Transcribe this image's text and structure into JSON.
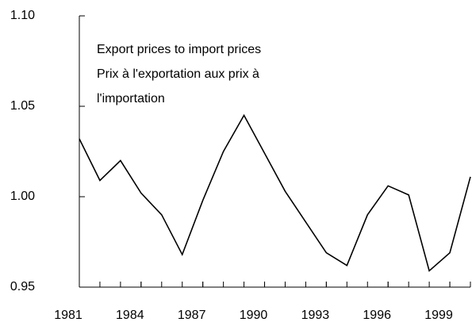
{
  "chart_data": {
    "type": "line",
    "annotations": [
      "Export prices to import prices",
      "Prix à l'exportation aux prix à",
      "l'importation"
    ],
    "x": [
      1981,
      1982,
      1983,
      1984,
      1985,
      1986,
      1987,
      1988,
      1989,
      1990,
      1991,
      1992,
      1993,
      1994,
      1995,
      1996,
      1997,
      1998,
      1999,
      2000
    ],
    "series": [
      {
        "color": "#000000",
        "values": [
          1.032,
          1.009,
          1.02,
          1.002,
          0.99,
          0.968,
          0.998,
          1.025,
          1.045,
          1.024,
          1.003,
          0.986,
          0.969,
          0.962,
          0.99,
          1.006,
          1.001,
          0.959,
          0.969,
          1.011
        ]
      }
    ],
    "xlim": [
      1981,
      2000
    ],
    "xticks": [
      1981,
      1984,
      1987,
      1990,
      1993,
      1996,
      1999
    ],
    "ylim": [
      0.95,
      1.1
    ],
    "yticks": [
      0.95,
      {
        "value": 1.0,
        "label": "1.00"
      },
      1.05,
      {
        "value": 1.1,
        "label": "1.10"
      }
    ],
    "grid": false
  }
}
